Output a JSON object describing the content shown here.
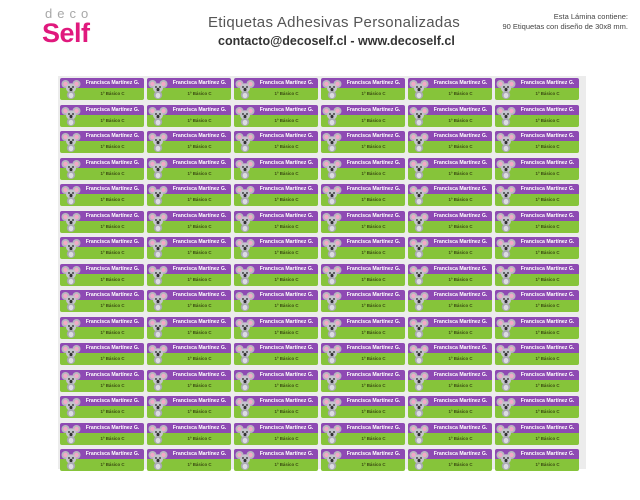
{
  "brand": {
    "top": "deco",
    "main": "Self"
  },
  "header": {
    "title": "Etiquetas Adhesivas Personalizadas",
    "contact": "contacto@decoself.cl - www.decoself.cl"
  },
  "sheet_info": {
    "line1": "Esta Lámina contiene:",
    "line2": "90 Etiquetas con diseño de 30x8 mm."
  },
  "label": {
    "name": "Francisca Martínez G.",
    "grade": "1º Básico C",
    "icon": "koala-icon",
    "colors": {
      "top": "#8e4ab3",
      "bottom": "#86c43a"
    }
  },
  "grid": {
    "columns": 6,
    "rows": 15
  }
}
